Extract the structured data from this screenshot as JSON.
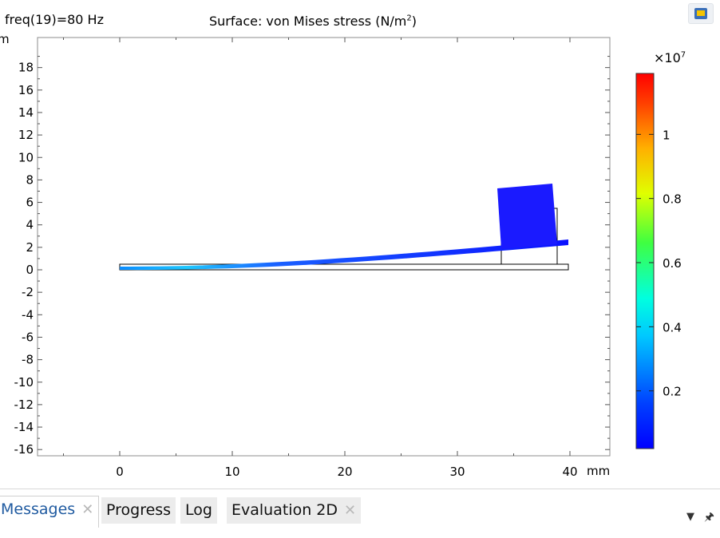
{
  "plot": {
    "freq_label": "freq(19)=80 Hz",
    "title_main": "Surface: von Mises stress (N/m",
    "title_sup": "2",
    "title_end": ")",
    "y_unit": "m",
    "x_unit": "mm",
    "x_ticks": [
      "0",
      "10",
      "20",
      "30",
      "40"
    ],
    "y_ticks": [
      "18",
      "16",
      "14",
      "12",
      "10",
      "8",
      "6",
      "4",
      "2",
      "0",
      "-2",
      "-4",
      "-6",
      "-8",
      "-10",
      "-12",
      "-14",
      "-16"
    ],
    "colorbar_multiplier": "×10",
    "colorbar_exponent": "7",
    "colorbar_ticks": [
      "1",
      "0.8",
      "0.6",
      "0.4",
      "0.2"
    ]
  },
  "colors": {
    "deformed_shape": "#1a1aff",
    "outline": "#000000"
  },
  "tabs": [
    {
      "label": "Messages",
      "close": "✕"
    },
    {
      "label": "Progress"
    },
    {
      "label": "Log"
    },
    {
      "label": "Evaluation 2D",
      "close": "✕"
    }
  ],
  "toolbar": {
    "dropdown_icon": "chevron-down-icon",
    "pin_icon": "pin-icon"
  }
}
